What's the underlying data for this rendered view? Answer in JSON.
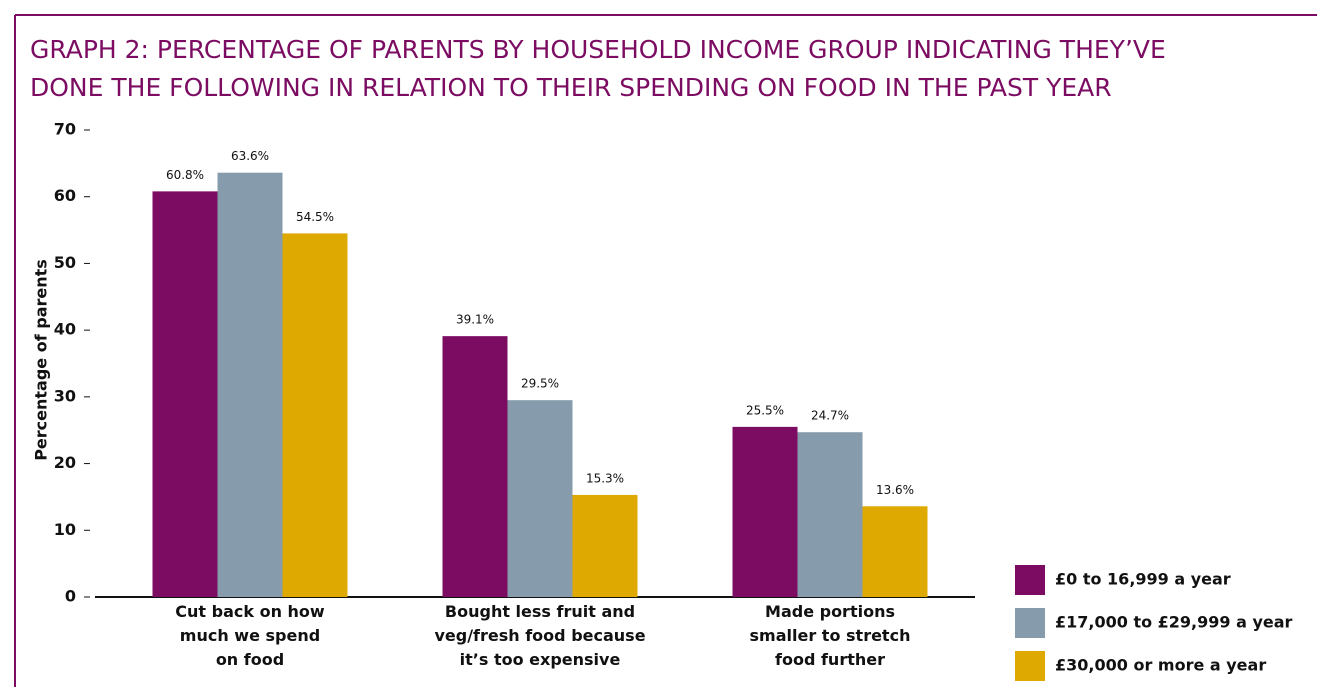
{
  "chart_data": {
    "type": "bar",
    "title_lines": [
      "GRAPH 2: PERCENTAGE OF PARENTS BY HOUSEHOLD INCOME GROUP INDICATING THEY’VE",
      "DONE THE FOLLOWING IN RELATION TO THEIR SPENDING ON FOOD IN THE PAST YEAR"
    ],
    "y_label": "Percentage of parents",
    "categories": [
      "Cut back on how\nmuch we spend\non food",
      "Bought less fruit and\nveg/fresh food because\nit’s too expensive",
      "Made portions\nsmaller to stretch\nfood further"
    ],
    "series": [
      {
        "name": "£0 to 16,999 a year",
        "color": "#7b0c62",
        "values": [
          60.8,
          39.1,
          25.5
        ],
        "value_labels": [
          "60.8%",
          "39.1%",
          "25.5%"
        ]
      },
      {
        "name": "£17,000 to £29,999 a year",
        "color": "#869bab",
        "values": [
          63.6,
          29.5,
          24.7
        ],
        "value_labels": [
          "63.6%",
          "29.5%",
          "24.7%"
        ]
      },
      {
        "name": "£30,000 or more a year",
        "color": "#dea900",
        "values": [
          54.5,
          15.3,
          13.6
        ],
        "value_labels": [
          "54.5%",
          "15.3%",
          "13.6%"
        ]
      }
    ],
    "ylim": [
      0,
      70
    ],
    "yticks": [
      0,
      10,
      20,
      30,
      40,
      50,
      60,
      70
    ],
    "legend": "lower right"
  }
}
